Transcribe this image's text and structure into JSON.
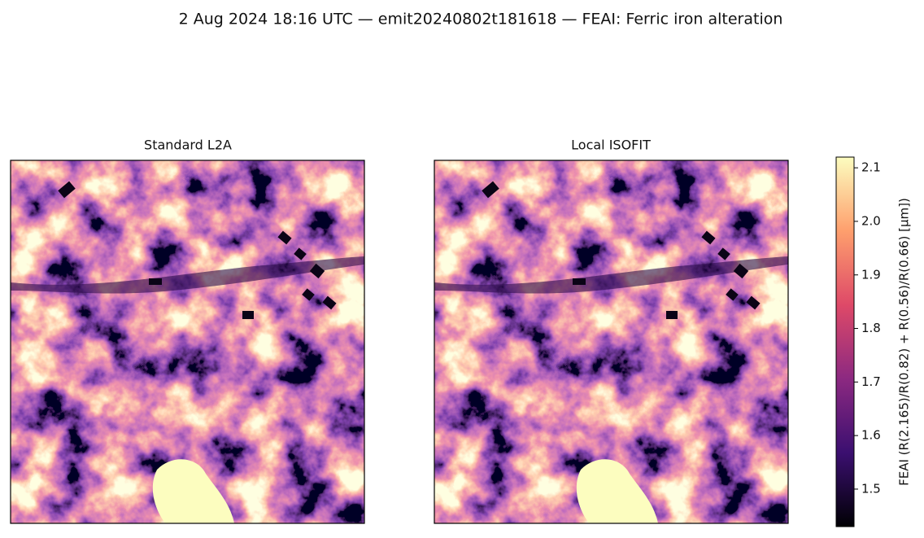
{
  "chart_data": {
    "type": "image",
    "title": "2 Aug 2024 18:16 UTC — emit20240802t181618 — FEAI: Ferric iron alteration",
    "panels": [
      {
        "title": "Standard L2A"
      },
      {
        "title": "Local ISOFIT"
      }
    ],
    "colorbar": {
      "label": "FEAI  (R(2.165)/R(0.82) + R(0.56)/R(0.66)  [μm])",
      "colormap": "magma",
      "lim": [
        1.43,
        2.12
      ],
      "ticks": [
        1.5,
        1.6,
        1.7,
        1.8,
        1.9,
        {
          "value": 2,
          "label": "2.0"
        },
        2.1
      ]
    }
  }
}
